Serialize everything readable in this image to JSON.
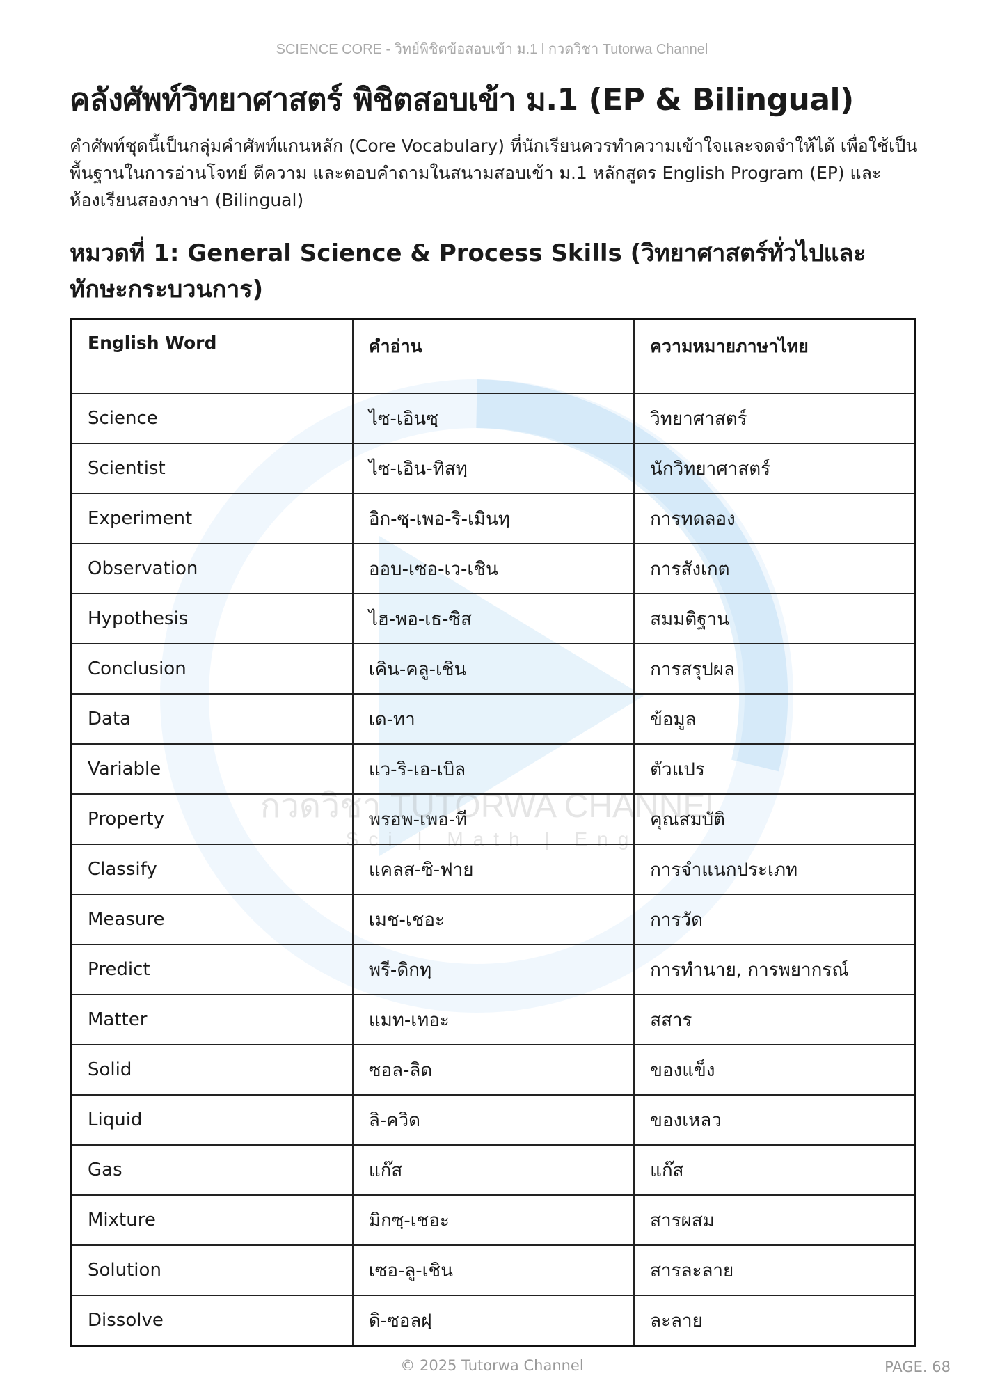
{
  "header": {
    "running_title": "SCIENCE CORE  - วิทย์พิชิตข้อสอบเข้า ม.1 l กวดวิชา Tutorwa Channel"
  },
  "title": "คลังศัพท์วิทยาศาสตร์ พิชิตสอบเข้า ม.1 (EP & Bilingual)",
  "intro": "คำศัพท์ชุดนี้เป็นกลุ่มคำศัพท์แกนหลัก (Core Vocabulary) ที่นักเรียนควรทำความเข้าใจและจดจำให้ได้ เพื่อใช้เป็นพื้นฐานในการอ่านโจทย์ ตีความ และตอบคำถามในสนามสอบเข้า ม.1 หลักสูตร English Program (EP) และห้องเรียนสองภาษา (Bilingual)",
  "section_heading": "หมวดที่ 1: General Science & Process Skills (วิทยาศาสตร์ทั่วไปและทักษะกระบวนการ)",
  "watermark": {
    "text": "กวดวิชา TUTORWA CHANNEL",
    "subtext": "Sci | Math | Eng",
    "color": "#3b9be0"
  },
  "table": {
    "headers": [
      "English Word",
      "คำอ่าน",
      "ความหมายภาษาไทย"
    ],
    "rows": [
      [
        "Science",
        "ไซ-เอินซฺ",
        "วิทยาศาสตร์"
      ],
      [
        "Scientist",
        "ไซ-เอิน-ทิสทฺ",
        "นักวิทยาศาสตร์"
      ],
      [
        "Experiment",
        "อิก-ซฺ-เพอ-ริ-เมินทฺ",
        "การทดลอง"
      ],
      [
        "Observation",
        "ออบ-เซอ-เว-เชิน",
        "การสังเกต"
      ],
      [
        "Hypothesis",
        "ไฮ-พอ-เธ-ซิส",
        "สมมติฐาน"
      ],
      [
        "Conclusion",
        "เคิน-คลู-เชิน",
        "การสรุปผล"
      ],
      [
        "Data",
        "เด-ทา",
        "ข้อมูล"
      ],
      [
        "Variable",
        "แว-ริ-เอ-เบิล",
        "ตัวแปร"
      ],
      [
        "Property",
        "พรอพ-เพอ-ที",
        "คุณสมบัติ"
      ],
      [
        "Classify",
        "แคลส-ซิ-ฟาย",
        "การจำแนกประเภท"
      ],
      [
        "Measure",
        "เมช-เชอะ",
        "การวัด"
      ],
      [
        "Predict",
        "พรี-ดิกทฺ",
        "การทำนาย, การพยากรณ์"
      ],
      [
        "Matter",
        "แมท-เทอะ",
        "สสาร"
      ],
      [
        "Solid",
        "ซอล-ลิด",
        "ของแข็ง"
      ],
      [
        "Liquid",
        "ลิ-ควิด",
        "ของเหลว"
      ],
      [
        "Gas",
        "แก๊ส",
        "แก๊ส"
      ],
      [
        "Mixture",
        "มิกซฺ-เชอะ",
        "สารผสม"
      ],
      [
        "Solution",
        "เซอ-ลู-เชิน",
        "สารละลาย"
      ],
      [
        "Dissolve",
        "ดิ-ซอลฝฺ",
        "ละลาย"
      ]
    ]
  },
  "footer": {
    "copyright": "© 2025 Tutorwa Channel",
    "page": "PAGE. 68"
  }
}
